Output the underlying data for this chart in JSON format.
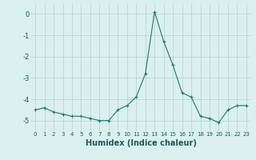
{
  "x": [
    0,
    1,
    2,
    3,
    4,
    5,
    6,
    7,
    8,
    9,
    10,
    11,
    12,
    13,
    14,
    15,
    16,
    17,
    18,
    19,
    20,
    21,
    22,
    23
  ],
  "y": [
    -4.5,
    -4.4,
    -4.6,
    -4.7,
    -4.8,
    -4.8,
    -4.9,
    -5.0,
    -5.0,
    -4.5,
    -4.3,
    -3.9,
    -2.8,
    0.1,
    -1.3,
    -2.4,
    -3.7,
    -3.9,
    -4.8,
    -4.9,
    -5.1,
    -4.5,
    -4.3,
    -4.3
  ],
  "line_color": "#1a7a6e",
  "marker": "+",
  "marker_size": 3,
  "marker_linewidth": 0.8,
  "bg_color": "#d9f0ee",
  "grid_color": "#b8d0ce",
  "xlabel": "Humidex (Indice chaleur)",
  "ylim": [
    -5.5,
    0.5
  ],
  "xlim": [
    -0.5,
    23.5
  ],
  "yticks": [
    0,
    -1,
    -2,
    -3,
    -4,
    -5
  ],
  "xticks": [
    0,
    1,
    2,
    3,
    4,
    5,
    6,
    7,
    8,
    9,
    10,
    11,
    12,
    13,
    14,
    15,
    16,
    17,
    18,
    19,
    20,
    21,
    22,
    23
  ],
  "line_width": 0.8,
  "xlabel_fontsize": 7,
  "xtick_fontsize": 5,
  "ytick_fontsize": 6
}
